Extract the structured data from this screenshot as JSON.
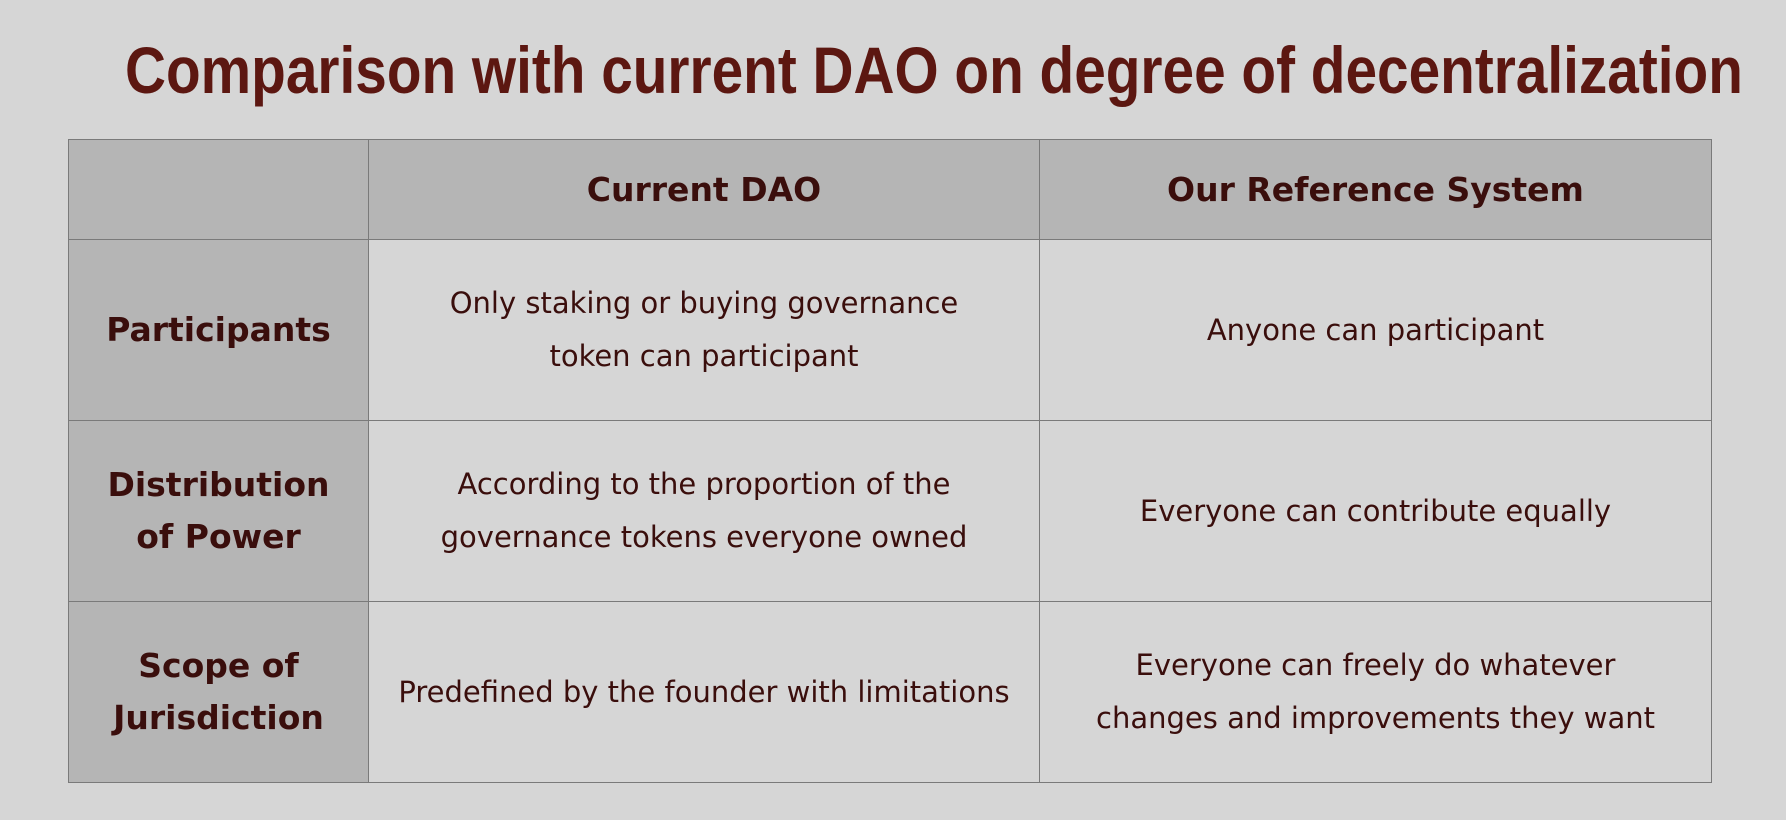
{
  "title": "Comparison with current DAO on degree of decentralization",
  "table": {
    "headers": [
      "",
      "Current DAO",
      "Our Reference System"
    ],
    "rows": [
      {
        "label": "Participants",
        "current_dao": "Only staking or buying governance token can participant",
        "reference_system": "Anyone can participant"
      },
      {
        "label": "Distribution of Power",
        "current_dao": "According to the proportion of the governance tokens everyone owned",
        "reference_system": "Everyone can contribute equally"
      },
      {
        "label": "Scope of Jurisdiction",
        "current_dao": "Predefined by the founder with limitations",
        "reference_system": "Everyone can freely do whatever changes and improvements they want"
      }
    ]
  },
  "colors": {
    "background": "#d6d6d6",
    "header_fill": "#b5b5b5",
    "title_text": "#5c1711",
    "body_text": "#3a0e0c",
    "grid_line": "#7a7a7a"
  }
}
